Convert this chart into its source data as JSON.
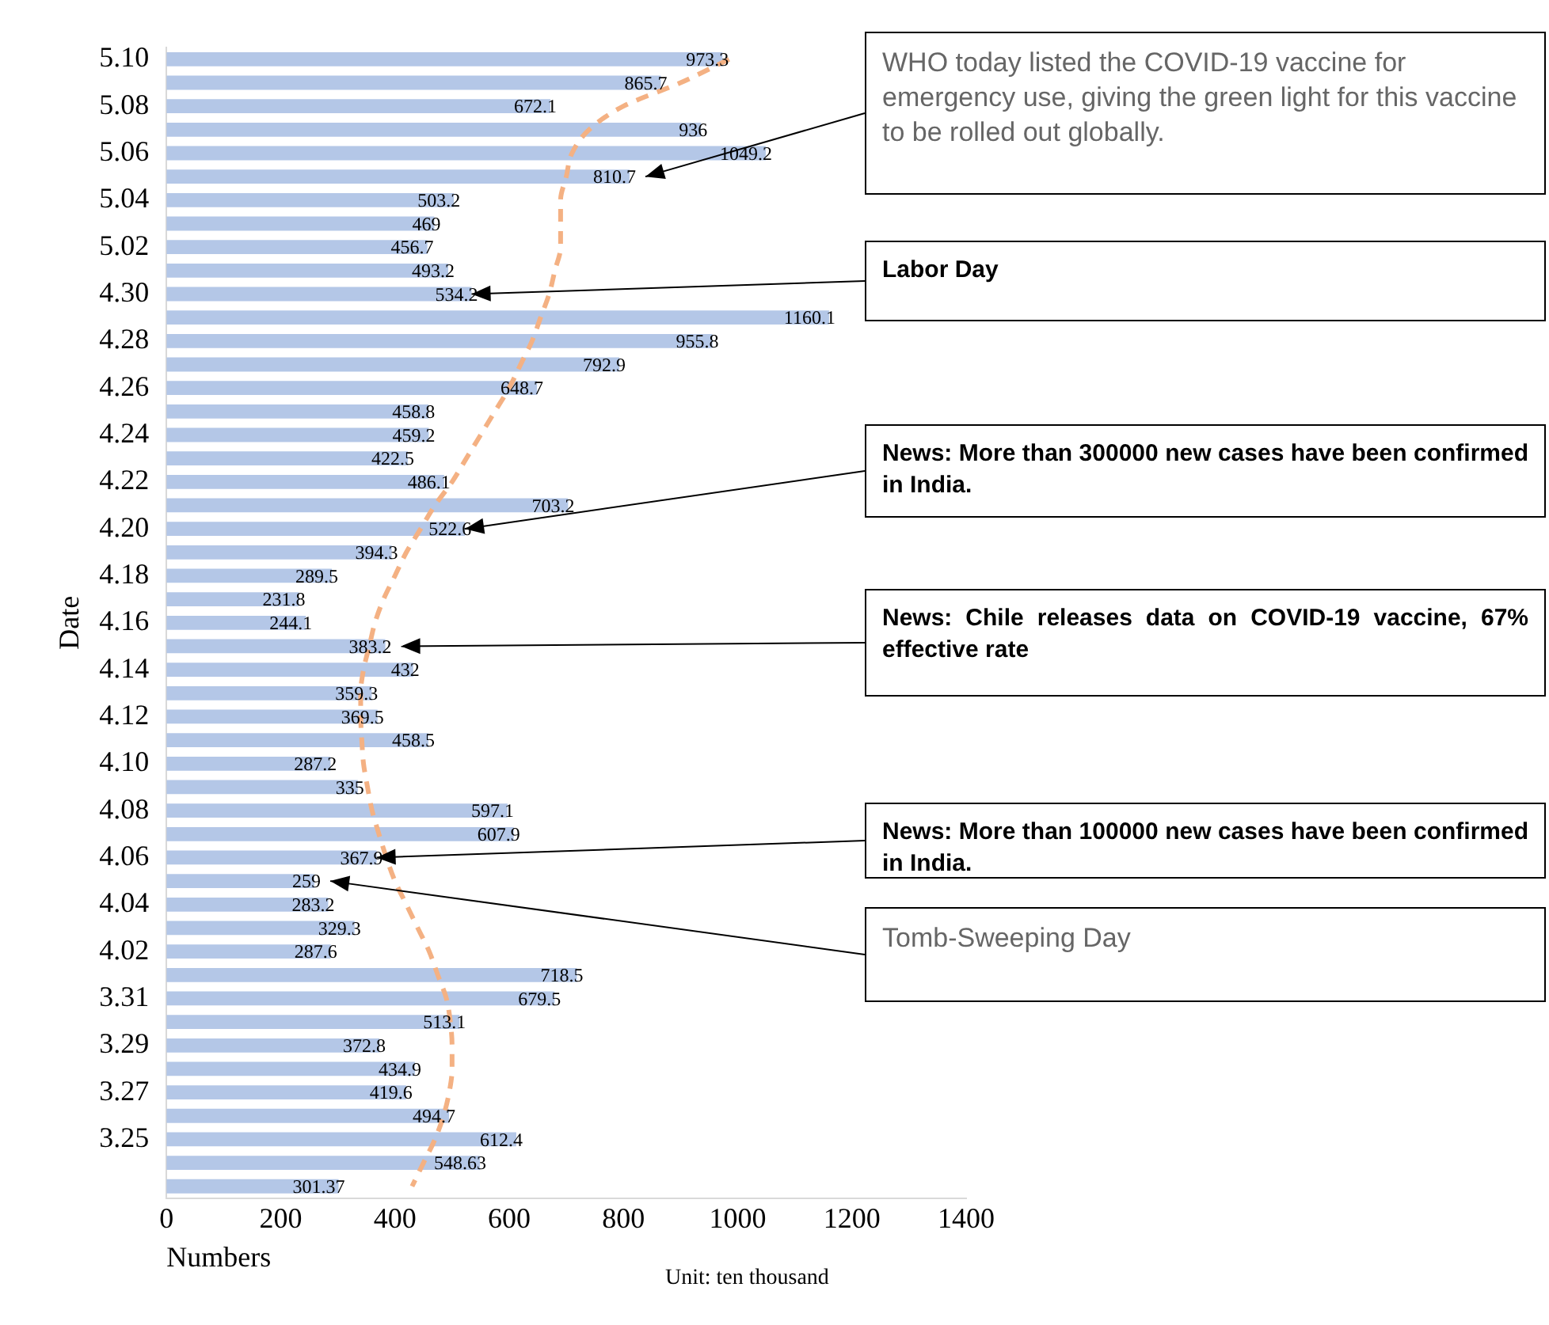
{
  "chart_data": {
    "type": "bar",
    "orientation": "horizontal",
    "xlabel": "Numbers",
    "ylabel": "Date",
    "categories": [
      "5.10",
      null,
      "5.08",
      null,
      "5.06",
      null,
      "5.04",
      null,
      "5.02",
      null,
      "4.30",
      null,
      "4.28",
      null,
      "4.26",
      null,
      "4.24",
      null,
      "4.22",
      null,
      "4.20",
      null,
      "4.18",
      null,
      "4.16",
      null,
      "4.14",
      null,
      "4.12",
      null,
      "4.10",
      null,
      "4.08",
      null,
      "4.06",
      null,
      "4.04",
      null,
      "4.02",
      null,
      "3.31",
      null,
      "3.29",
      null,
      "3.27",
      null,
      "3.25",
      null,
      null
    ],
    "series": [
      {
        "color": "#b4c7e7",
        "values": [
          973.3,
          865.7,
          672.1,
          936,
          1049.2,
          810.7,
          503.2,
          469,
          456.7,
          493.2,
          534.2,
          1160.1,
          955.8,
          792.9,
          648.7,
          458.8,
          459.2,
          422.5,
          486.1,
          703.2,
          522.6,
          394.3,
          289.5,
          231.8,
          244.1,
          383.2,
          432,
          359.3,
          369.5,
          458.5,
          287.2,
          335,
          597.1,
          607.9,
          367.9,
          259,
          283.2,
          329.3,
          287.6,
          718.5,
          679.5,
          513.1,
          372.8,
          434.9,
          419.6,
          494.7,
          612.4,
          548.63,
          301.37
        ],
        "value_labels": [
          "973.3",
          "865.7",
          "672.1",
          "936",
          "1049.2",
          "810.7",
          "503.2",
          "469",
          "456.7",
          "493.2",
          "534.2",
          "1160.1",
          "955.8",
          "792.9",
          "648.7",
          "458.8",
          "459.2",
          "422.5",
          "486.1",
          "703.2",
          "522.6",
          "394.3",
          "289.5",
          "231.8",
          "244.1",
          "383.2",
          "432",
          "359.3",
          "369.5",
          "458.5",
          "287.2",
          "335",
          "597.1",
          "607.9",
          "367.9",
          "259",
          "283.2",
          "329.3",
          "287.6",
          "718.5",
          "679.5",
          "513.1",
          "372.8",
          "434.9",
          "419.6",
          "494.7",
          "612.4",
          "548.63",
          "301.37"
        ]
      },
      {
        "type": "line",
        "color": "#f4b183",
        "line_style": "dashed",
        "marker": "none",
        "values": [
          985,
          900,
          800,
          740,
          710,
          700,
          690,
          690,
          690,
          680,
          670,
          655,
          640,
          620,
          600,
          575,
          550,
          525,
          500,
          470,
          445,
          420,
          400,
          380,
          365,
          355,
          345,
          340,
          340,
          342,
          345,
          352,
          360,
          372,
          385,
          400,
          420,
          440,
          460,
          475,
          490,
          497,
          500,
          500,
          495,
          485,
          470,
          450,
          430
        ]
      }
    ],
    "xlim": [
      0,
      1400
    ],
    "xticks": [
      0,
      200,
      400,
      600,
      800,
      1000,
      1200,
      1400
    ],
    "grid": false,
    "legend": false,
    "annotations": [
      "WHO today listed the COVID-19 vaccine for emergency use, giving the green light for this vaccine to be rolled out globally.",
      {
        "text": "Labor Day",
        "x": 534.2,
        "y": "4.30"
      },
      {
        "text": "News: More than 300000 new cases have been confirmed in India.",
        "x": 522.6,
        "y": "4.20"
      },
      "News: Chile releases data on COVID-19 vaccine, 67% effective rate",
      {
        "text": "News: More than 100000 new cases have been confirmed in India.",
        "x": 367.9,
        "y": "4.06"
      },
      "Tomb-Sweeping Day",
      "Unit: ten thousand"
    ]
  }
}
